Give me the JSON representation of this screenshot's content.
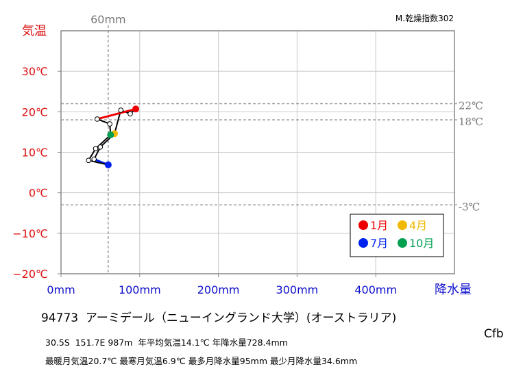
{
  "chart_data": {
    "type": "line",
    "x_axis": {
      "label": "降水量",
      "range": [
        0,
        500
      ],
      "ticks": [
        0,
        100,
        200,
        300,
        400
      ],
      "tick_labels": [
        "0mm",
        "100mm",
        "200mm",
        "300mm",
        "400mm"
      ]
    },
    "y_axis": {
      "label": "気温",
      "range": [
        -20,
        40
      ],
      "ticks": [
        -20,
        -10,
        0,
        10,
        20,
        30
      ],
      "tick_labels": [
        "−20℃",
        "−10℃",
        "0℃",
        "10℃",
        "20℃",
        "30℃"
      ]
    },
    "grid": true,
    "reference_lines": {
      "vertical": {
        "value": 60,
        "label": "60mm"
      },
      "horizontal": [
        {
          "value": 22,
          "label": "22℃"
        },
        {
          "value": 18,
          "label": "18℃"
        },
        {
          "value": -3,
          "label": "-3℃"
        }
      ]
    },
    "top_right_label": "M.乾燥指数302",
    "months": [
      {
        "month": 1,
        "precip": 95,
        "temp": 20.7
      },
      {
        "month": 2,
        "precip": 88,
        "temp": 19.5
      },
      {
        "month": 3,
        "precip": 76,
        "temp": 20.4
      },
      {
        "month": 4,
        "precip": 68,
        "temp": 14.6
      },
      {
        "month": 5,
        "precip": 50,
        "temp": 11.3
      },
      {
        "month": 6,
        "precip": 42,
        "temp": 8.3
      },
      {
        "month": 7,
        "precip": 60,
        "temp": 6.9
      },
      {
        "month": 8,
        "precip": 35,
        "temp": 8.0
      },
      {
        "month": 9,
        "precip": 44,
        "temp": 10.9
      },
      {
        "month": 10,
        "precip": 63,
        "temp": 14.3
      },
      {
        "month": 11,
        "precip": 62,
        "temp": 17.0
      },
      {
        "month": 12,
        "precip": 46,
        "temp": 18.2
      }
    ],
    "highlight": [
      {
        "month": 1,
        "label": "1月",
        "color": "#ee0000"
      },
      {
        "month": 4,
        "label": "4月",
        "color": "#f0b800"
      },
      {
        "month": 7,
        "label": "7月",
        "color": "#0022ee"
      },
      {
        "month": 10,
        "label": "10月",
        "color": "#00a050"
      }
    ],
    "legend_position": "bottom-right"
  },
  "station": {
    "title": "94773  アーミデール（ニューイングランド大学）(オーストラリア)",
    "line1": "30.5S  151.7E 987m  年平均気温14.1℃ 年降水量728.4mm",
    "line2": "最暖月気温20.7℃ 最寒月気温6.9℃ 最多月降水量95mm 最少月降水量34.6mm",
    "climate_class": "Cfb"
  },
  "colors": {
    "temp_axis": "#dd1111",
    "precip_axis": "#1111cc",
    "reference": "#999999",
    "grid": "#c8c8c8"
  }
}
